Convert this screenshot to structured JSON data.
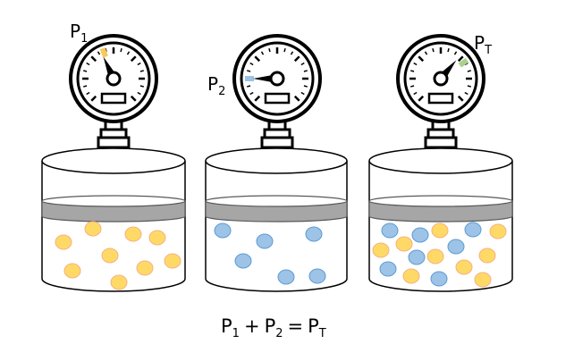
{
  "gauges": [
    {
      "label_main": "P",
      "label_sub": "1",
      "marker_color": "#f7c85a"
    },
    {
      "label_main": "P",
      "label_sub": "2",
      "marker_color": "#9dc3e6"
    },
    {
      "label_main": "P",
      "label_sub": "T",
      "marker_color": "#a9d18e"
    }
  ],
  "equation": {
    "p1_main": "P",
    "p1_sub": "1",
    "plus": "+",
    "p2_main": "P",
    "p2_sub": "2",
    "equals": "=",
    "pt_main": "P",
    "pt_sub": "T"
  },
  "colors": {
    "gas1_fill": "#ffd966",
    "gas1_stroke": "#f4b183",
    "gas2_fill": "#9dc3e6",
    "gas2_stroke": "#5b9bd5",
    "piston": "#a6a6a6",
    "outline": "#000000"
  }
}
